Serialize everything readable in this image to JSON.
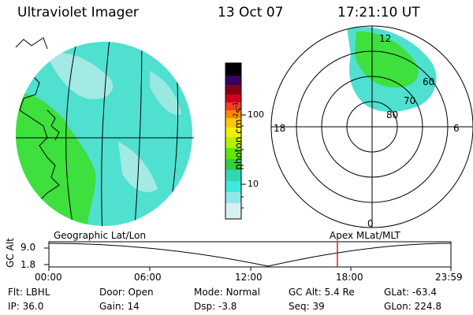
{
  "header": {
    "instrument": "Ultraviolet Imager",
    "date": "13 Oct 07",
    "time": "17:21:10 UT"
  },
  "colorbar": {
    "unit_label": "photon cm",
    "unit_sup1": "-2",
    "unit_mid": "s",
    "unit_sup2": "-1",
    "ticks": [
      "100",
      "10"
    ]
  },
  "polar_plot": {
    "mlt_labels": [
      "12",
      "18",
      "6",
      "0"
    ],
    "lat_labels": [
      "60",
      "70",
      "80"
    ]
  },
  "timeline": {
    "left_label": "Geographic Lat/Lon",
    "right_label": "Apex MLat/MLT",
    "y_title": "GC Alt",
    "y_ticks": [
      "9.0",
      "1.8"
    ],
    "x_ticks": [
      "00:00",
      "06:00",
      "12:00",
      "18:00",
      "23:59"
    ],
    "current_time_marker": "17:21",
    "marker_color": "#d62020"
  },
  "footer": {
    "row1": [
      {
        "key": "Flt:",
        "val": "LBHL"
      },
      {
        "key": "Door:",
        "val": "Open"
      },
      {
        "key": "Mode:",
        "val": "Normal"
      },
      {
        "key": "GC Alt:",
        "val": "5.4 Re"
      },
      {
        "key": "GLat:",
        "val": "-63.4"
      }
    ],
    "row2": [
      {
        "key": "IP:",
        "val": "36.0"
      },
      {
        "key": "Gain:",
        "val": "14"
      },
      {
        "key": "Dsp:",
        "val": "-3.8"
      },
      {
        "key": "Seq:",
        "val": "39"
      },
      {
        "key": "GLon:",
        "val": "224.8"
      }
    ]
  },
  "colors": {
    "aurora_green": "#3de03d",
    "aurora_cyan": "#4fe0d0",
    "aurora_light": "#b8ece8"
  }
}
